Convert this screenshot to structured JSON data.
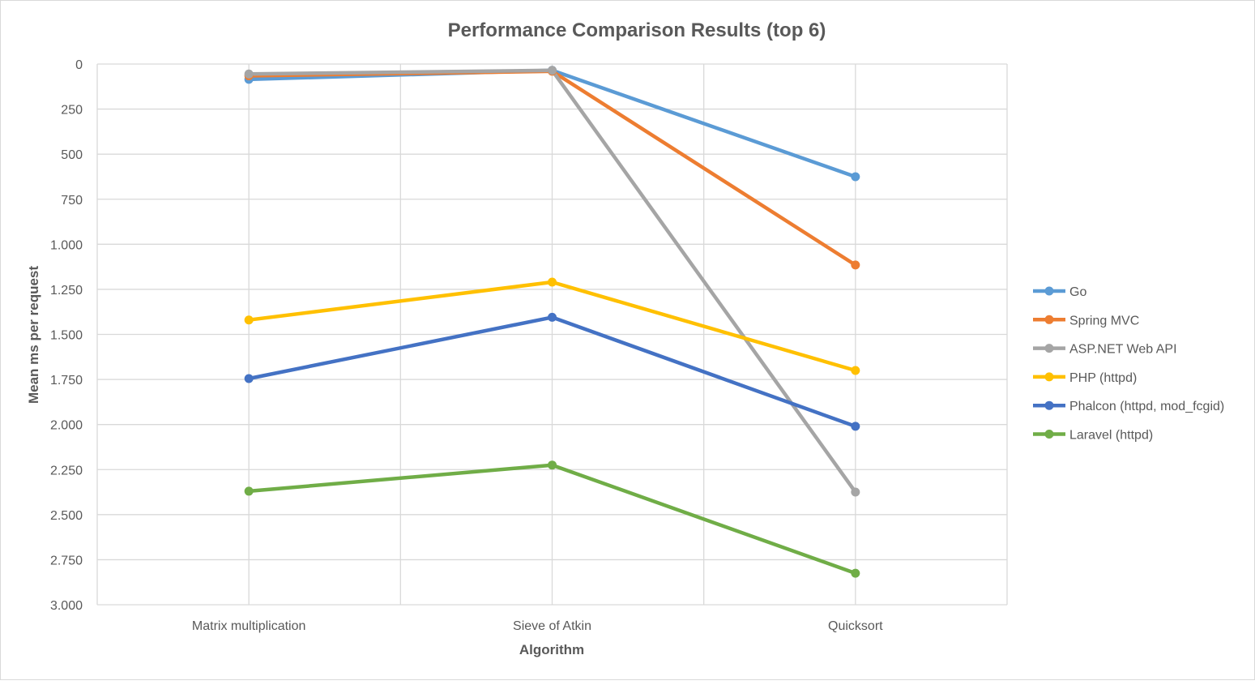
{
  "chart_data": {
    "type": "line",
    "title": "Performance Comparison Results (top 6)",
    "xlabel": "Algorithm",
    "ylabel": "Mean ms per request",
    "categories": [
      "Matrix multiplication",
      "Sieve of Atkin",
      "Quicksort"
    ],
    "ylim": [
      0,
      3000
    ],
    "y_reversed": true,
    "y_ticks": [
      0,
      250,
      500,
      750,
      1000,
      1250,
      1500,
      1750,
      2000,
      2250,
      2500,
      2750,
      3000
    ],
    "y_tick_labels": [
      "0",
      "250",
      "500",
      "750",
      "1.000",
      "1.250",
      "1.500",
      "1.750",
      "2.000",
      "2.250",
      "2.500",
      "2.750",
      "3.000"
    ],
    "grid": true,
    "legend_position": "right",
    "series": [
      {
        "name": "Go",
        "color": "#5b9bd5",
        "values": [
          85,
          35,
          625
        ]
      },
      {
        "name": "Spring MVC",
        "color": "#ed7d31",
        "values": [
          65,
          40,
          1115
        ]
      },
      {
        "name": "ASP.NET Web API",
        "color": "#a5a5a5",
        "values": [
          55,
          35,
          2375
        ]
      },
      {
        "name": "PHP (httpd)",
        "color": "#ffc000",
        "values": [
          1420,
          1210,
          1700
        ]
      },
      {
        "name": "Phalcon (httpd, mod_fcgid)",
        "color": "#4472c4",
        "values": [
          1745,
          1405,
          2010
        ]
      },
      {
        "name": "Laravel (httpd)",
        "color": "#70ad47",
        "values": [
          2370,
          2225,
          2825
        ]
      }
    ]
  }
}
